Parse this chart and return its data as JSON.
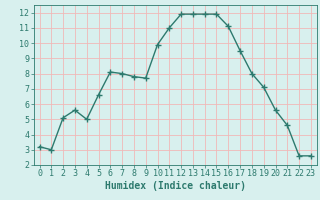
{
  "xlabel": "Humidex (Indice chaleur)",
  "x": [
    0,
    1,
    2,
    3,
    4,
    5,
    6,
    7,
    8,
    9,
    10,
    11,
    12,
    13,
    14,
    15,
    16,
    17,
    18,
    19,
    20,
    21,
    22,
    23
  ],
  "y": [
    3.2,
    3.0,
    5.1,
    5.6,
    5.0,
    6.6,
    8.1,
    8.0,
    7.8,
    7.7,
    9.9,
    11.0,
    11.9,
    11.9,
    11.9,
    11.9,
    11.1,
    9.5,
    8.0,
    7.1,
    5.6,
    4.6,
    2.6,
    2.6
  ],
  "line_color": "#2d7a6e",
  "marker": "+",
  "marker_size": 4,
  "line_width": 1.0,
  "bg_color": "#d8f0ee",
  "grid_color": "#f0b8b8",
  "xlim": [
    -0.5,
    23.5
  ],
  "ylim": [
    2,
    12.5
  ],
  "yticks": [
    2,
    3,
    4,
    5,
    6,
    7,
    8,
    9,
    10,
    11,
    12
  ],
  "xticks": [
    0,
    1,
    2,
    3,
    4,
    5,
    6,
    7,
    8,
    9,
    10,
    11,
    12,
    13,
    14,
    15,
    16,
    17,
    18,
    19,
    20,
    21,
    22,
    23
  ],
  "tick_fontsize": 6,
  "xlabel_fontsize": 7
}
